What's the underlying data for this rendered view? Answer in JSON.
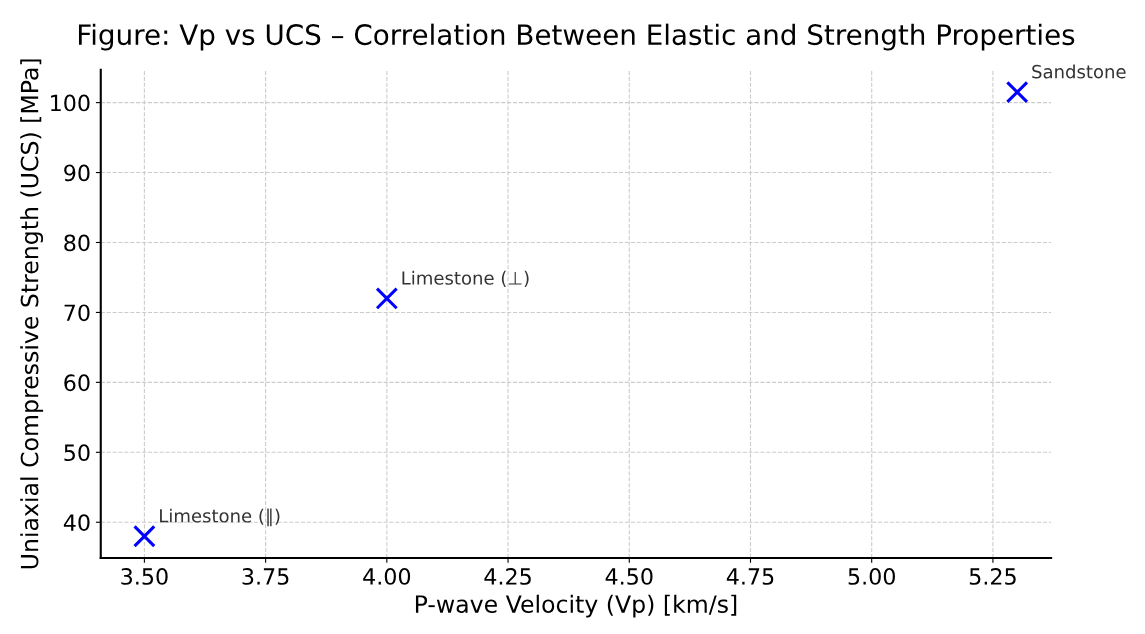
{
  "chart_data": {
    "type": "scatter",
    "title": "Figure: Vp vs UCS – Correlation Between Elastic and Strength Properties",
    "xlabel": "P-wave Velocity (Vp) [km/s]",
    "ylabel": "Uniaxial Compressive Strength (UCS) [MPa]",
    "x": [
      3.5,
      4.0,
      5.3
    ],
    "series": [
      {
        "color": "#0000ff",
        "values": [
          38,
          72,
          101.5
        ]
      }
    ],
    "marker": "cross",
    "grid": true,
    "legend": false,
    "xlim": [
      3.41,
      5.37
    ],
    "ylim": [
      34.9,
      104.7
    ],
    "xticks": [
      {
        "value": 3.5,
        "label": "3.50"
      },
      {
        "value": 3.75,
        "label": "3.75"
      },
      {
        "value": 4.0,
        "label": "4.00"
      },
      {
        "value": 4.25,
        "label": "4.25"
      },
      {
        "value": 4.5,
        "label": "4.50"
      },
      {
        "value": 4.75,
        "label": "4.75"
      },
      {
        "value": 5.0,
        "label": "5.00"
      },
      {
        "value": 5.25,
        "label": "5.25"
      }
    ],
    "yticks": [
      40,
      50,
      60,
      70,
      80,
      90,
      100
    ],
    "annotations": [
      {
        "text": "Limestone (∥)",
        "x": 3.5,
        "y": 38
      },
      {
        "text": "Limestone (⊥)",
        "x": 4.0,
        "y": 72
      },
      {
        "text": "Sandstone",
        "x": 5.3,
        "y": 101.5
      }
    ]
  }
}
